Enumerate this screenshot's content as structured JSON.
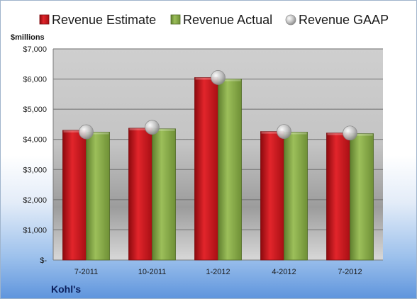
{
  "chart_data": {
    "type": "bar",
    "title": "",
    "company": "Kohl's",
    "ylabel": "$millions",
    "xlabel": "",
    "categories": [
      "7-2011",
      "10-2011",
      "1-2012",
      "4-2012",
      "7-2012"
    ],
    "series": [
      {
        "name": "Revenue Estimate",
        "kind": "bar",
        "color": "#d9141b",
        "values": [
          4300,
          4370,
          6050,
          4260,
          4210
        ]
      },
      {
        "name": "Revenue Actual",
        "kind": "bar",
        "color": "#8aae4a",
        "values": [
          4240,
          4350,
          6000,
          4240,
          4190
        ]
      },
      {
        "name": "Revenue GAAP",
        "kind": "marker",
        "color": "#c8c8c8",
        "values": [
          4250,
          4400,
          6050,
          4260,
          4210
        ]
      }
    ],
    "ylim": [
      0,
      7000
    ],
    "yticks": [
      0,
      1000,
      2000,
      3000,
      4000,
      5000,
      6000,
      7000
    ],
    "ytick_labels": [
      "$-",
      "$1,000",
      "$2,000",
      "$3,000",
      "$4,000",
      "$5,000",
      "$6,000",
      "$7,000"
    ],
    "grid": true,
    "legend_position": "top"
  }
}
